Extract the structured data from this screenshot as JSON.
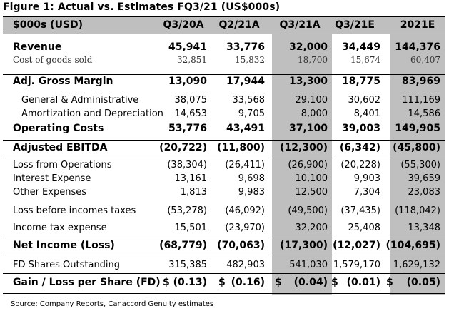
{
  "title": "Figure 1: Actual vs. Estimates FQ3/21 (US$000s)",
  "header": {
    "label": "$000s (USD)",
    "columns": [
      "Q3/20A",
      "Q2/21A",
      "Q3/21A",
      "Q3/21E",
      "2021E"
    ]
  },
  "rows": [
    {
      "label": "Revenue",
      "values": [
        "45,941",
        "33,776",
        "32,000",
        "34,449",
        "144,376"
      ]
    },
    {
      "label": "Cost of goods sold",
      "values": [
        "32,851",
        "15,832",
        "18,700",
        "15,674",
        "60,407"
      ]
    },
    {
      "label": "Adj. Gross Margin",
      "values": [
        "13,090",
        "17,944",
        "13,300",
        "18,775",
        "83,969"
      ]
    },
    {
      "label": "General & Administrative",
      "values": [
        "38,075",
        "33,568",
        "29,100",
        "30,602",
        "111,169"
      ]
    },
    {
      "label": "Amortization and Depreciation",
      "values": [
        "14,653",
        "9,705",
        "8,000",
        "8,401",
        "14,586"
      ]
    },
    {
      "label": "Operating Costs",
      "values": [
        "53,776",
        "43,491",
        "37,100",
        "39,003",
        "149,905"
      ]
    },
    {
      "label": "Adjusted EBITDA",
      "values": [
        "(20,722)",
        "(11,800)",
        "(12,300)",
        "(6,342)",
        "(45,800)"
      ]
    },
    {
      "label": "Loss from Operations",
      "values": [
        "(38,304)",
        "(26,411)",
        "(26,900)",
        "(20,228)",
        "(55,300)"
      ]
    },
    {
      "label": "Interest Expense",
      "values": [
        "13,161",
        "9,698",
        "10,100",
        "9,903",
        "39,659"
      ]
    },
    {
      "label": "Other Expenses",
      "values": [
        "1,813",
        "9,983",
        "12,500",
        "7,304",
        "23,083"
      ]
    },
    {
      "label": "Loss before incomes taxes",
      "values": [
        "(53,278)",
        "(46,092)",
        "(49,500)",
        "(37,435)",
        "(118,042)"
      ]
    },
    {
      "label": "Income tax expense",
      "values": [
        "15,501",
        "(23,970)",
        "32,200",
        "25,408",
        "13,348"
      ]
    },
    {
      "label": "Net Income (Loss)",
      "values": [
        "(68,779)",
        "(70,063)",
        "(17,300)",
        "(12,027)",
        "(104,695)"
      ]
    },
    {
      "label": "FD Shares Outstanding",
      "values": [
        "315,385",
        "482,903",
        "541,030",
        "1,579,170",
        "1,629,132"
      ]
    },
    {
      "label": "Gain / Loss per Share (FD)",
      "currency": "$",
      "values": [
        "(0.13)",
        "(0.16)",
        "(0.04)",
        "(0.01)",
        "(0.05)"
      ]
    }
  ],
  "source": "Source: Company Reports, Canaccord Genuity estimates",
  "colors": {
    "highlight_column": "#bfbfbf",
    "header_bar": "#bfbfbf"
  }
}
